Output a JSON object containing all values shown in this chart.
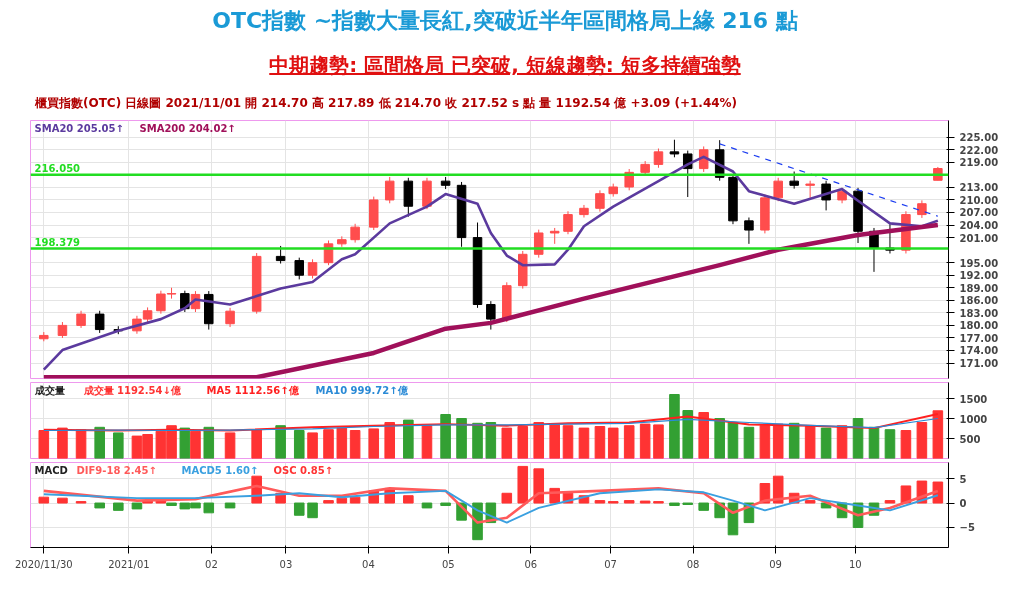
{
  "chart_data": [
    {
      "type": "candlestick",
      "title": "OTC指數 ~指數大量長紅,突破近半年區間格局上緣 216 點",
      "subtitle": "中期趨勢: 區間格局 已突破, 短線趨勢: 短多持續強勢",
      "annotations": [
        "櫃買指數(OTC)  日線圖  2021/11/01  開 214.70  高 217.89  低 214.70  收 217.52 s 點  量 1192.54 億  +3.09 (+1.44%)"
      ],
      "x": [
        "2020-11-30",
        "2020-12-07",
        "2020-12-14",
        "2020-12-21",
        "2020-12-28",
        "2021-01-04",
        "2021-01-08",
        "2021-01-13",
        "2021-01-17",
        "2021-01-22",
        "2021-01-26",
        "2021-01-31",
        "2021-02-08",
        "2021-02-18",
        "2021-02-27",
        "2021-03-06",
        "2021-03-11",
        "2021-03-17",
        "2021-03-22",
        "2021-03-27",
        "2021-04-03",
        "2021-04-09",
        "2021-04-16",
        "2021-04-23",
        "2021-04-30",
        "2021-05-06",
        "2021-05-12",
        "2021-05-17",
        "2021-05-23",
        "2021-05-29",
        "2021-06-04",
        "2021-06-10",
        "2021-06-15",
        "2021-06-21",
        "2021-06-27",
        "2021-07-02",
        "2021-07-08",
        "2021-07-14",
        "2021-07-19",
        "2021-07-25",
        "2021-07-30",
        "2021-08-05",
        "2021-08-11",
        "2021-08-16",
        "2021-08-22",
        "2021-08-28",
        "2021-09-02",
        "2021-09-08",
        "2021-09-14",
        "2021-09-20",
        "2021-09-26",
        "2021-10-02",
        "2021-10-08",
        "2021-10-14",
        "2021-10-20",
        "2021-10-26",
        "2021-11-01"
      ],
      "ohlc": [
        [
          176.8,
          178.4,
          176.2,
          177.6
        ],
        [
          177.6,
          180.8,
          177.0,
          180.0
        ],
        [
          180.0,
          183.5,
          179.4,
          182.7
        ],
        [
          182.7,
          183.5,
          178.2,
          179.0
        ],
        [
          179.0,
          179.8,
          177.9,
          178.7
        ],
        [
          178.7,
          182.3,
          178.0,
          181.5
        ],
        [
          181.5,
          184.3,
          180.8,
          183.5
        ],
        [
          183.5,
          188.3,
          182.8,
          187.5
        ],
        [
          187.5,
          189.0,
          186.4,
          187.6
        ],
        [
          187.6,
          188.3,
          183.2,
          184.0
        ],
        [
          184.0,
          188.2,
          183.2,
          187.4
        ],
        [
          187.4,
          188.2,
          179.0,
          180.4
        ],
        [
          180.4,
          184.2,
          179.6,
          183.4
        ],
        [
          183.4,
          197.3,
          182.8,
          196.5
        ],
        [
          196.5,
          199.0,
          194.8,
          195.5
        ],
        [
          195.5,
          196.2,
          191.0,
          192.0
        ],
        [
          192.0,
          195.8,
          191.2,
          195.0
        ],
        [
          195.0,
          200.3,
          194.4,
          199.5
        ],
        [
          199.5,
          201.3,
          198.8,
          200.5
        ],
        [
          200.5,
          204.3,
          199.8,
          203.5
        ],
        [
          203.5,
          210.8,
          202.8,
          210.0
        ],
        [
          210.0,
          215.5,
          209.2,
          214.5
        ],
        [
          214.5,
          215.3,
          206.0,
          208.5
        ],
        [
          208.5,
          215.3,
          207.8,
          214.5
        ],
        [
          214.5,
          215.5,
          212.6,
          213.5
        ],
        [
          213.5,
          214.3,
          198.8,
          201.0
        ],
        [
          201.0,
          204.6,
          184.2,
          185.0
        ],
        [
          185.0,
          185.8,
          179.0,
          181.5
        ],
        [
          181.5,
          190.3,
          180.8,
          189.5
        ],
        [
          189.5,
          197.8,
          188.8,
          197.0
        ],
        [
          197.0,
          202.9,
          196.2,
          202.1
        ],
        [
          202.1,
          203.3,
          199.5,
          202.5
        ],
        [
          202.5,
          207.3,
          201.8,
          206.5
        ],
        [
          206.5,
          208.8,
          205.8,
          208.0
        ],
        [
          208.0,
          212.3,
          207.2,
          211.5
        ],
        [
          211.5,
          213.9,
          210.8,
          213.1
        ],
        [
          213.1,
          217.4,
          212.3,
          216.6
        ],
        [
          216.6,
          219.3,
          215.8,
          218.5
        ],
        [
          218.5,
          222.3,
          217.7,
          221.5
        ],
        [
          221.5,
          224.4,
          220.2,
          221.0
        ],
        [
          221.0,
          221.8,
          210.7,
          217.5
        ],
        [
          217.5,
          222.8,
          216.7,
          222.0
        ],
        [
          222.0,
          224.3,
          214.6,
          215.4
        ],
        [
          215.4,
          216.2,
          204.2,
          205.0
        ],
        [
          205.0,
          205.8,
          199.5,
          202.8
        ],
        [
          202.8,
          211.3,
          202.0,
          210.5
        ],
        [
          210.5,
          215.3,
          209.7,
          214.5
        ],
        [
          214.5,
          216.8,
          212.7,
          213.5
        ],
        [
          213.5,
          214.6,
          210.5,
          213.8
        ],
        [
          213.8,
          214.6,
          207.5,
          210.0
        ],
        [
          210.0,
          212.9,
          209.2,
          212.1
        ],
        [
          212.1,
          212.9,
          199.7,
          202.5
        ],
        [
          202.5,
          203.3,
          192.8,
          198.5
        ],
        [
          198.5,
          204.2,
          197.2,
          198.0
        ],
        [
          198.0,
          207.3,
          197.2,
          206.5
        ],
        [
          206.5,
          209.9,
          205.7,
          209.1
        ],
        [
          214.7,
          217.89,
          214.7,
          217.52
        ]
      ],
      "colors": [
        "#ff4d4d",
        "#ff4d4d",
        "#ff4d4d",
        "#000000",
        "#000000",
        "#ff4d4d",
        "#ff4d4d",
        "#ff4d4d",
        "#ff4d4d",
        "#000000",
        "#ff4d4d",
        "#000000",
        "#ff4d4d",
        "#ff4d4d",
        "#000000",
        "#000000",
        "#ff4d4d",
        "#ff4d4d",
        "#ff4d4d",
        "#ff4d4d",
        "#ff4d4d",
        "#ff4d4d",
        "#000000",
        "#ff4d4d",
        "#000000",
        "#000000",
        "#000000",
        "#000000",
        "#ff4d4d",
        "#ff4d4d",
        "#ff4d4d",
        "#ff4d4d",
        "#ff4d4d",
        "#ff4d4d",
        "#ff4d4d",
        "#ff4d4d",
        "#ff4d4d",
        "#ff4d4d",
        "#ff4d4d",
        "#000000",
        "#000000",
        "#ff4d4d",
        "#000000",
        "#000000",
        "#000000",
        "#ff4d4d",
        "#ff4d4d",
        "#000000",
        "#ff4d4d",
        "#000000",
        "#ff4d4d",
        "#000000",
        "#000000",
        "#000000",
        "#ff4d4d",
        "#ff4d4d",
        "#ff4d4d"
      ],
      "series": [
        {
          "name": "SMA20 205.05↑",
          "type": "line",
          "color": "#5b3a9e",
          "x": [
            "2020-11-30",
            "2020-12-07",
            "2020-12-28",
            "2021-01-13",
            "2021-01-22",
            "2021-01-26",
            "2021-02-08",
            "2021-02-27",
            "2021-03-11",
            "2021-03-22",
            "2021-03-27",
            "2021-04-09",
            "2021-04-23",
            "2021-04-30",
            "2021-05-12",
            "2021-05-17",
            "2021-05-23",
            "2021-05-29",
            "2021-06-10",
            "2021-06-15",
            "2021-06-21",
            "2021-07-02",
            "2021-07-19",
            "2021-07-30",
            "2021-08-05",
            "2021-08-16",
            "2021-08-22",
            "2021-09-08",
            "2021-09-26",
            "2021-10-02",
            "2021-10-14",
            "2021-10-26",
            "2021-11-01"
          ],
          "values": [
            169.4,
            174.1,
            178.7,
            181.5,
            184.1,
            186.2,
            185.0,
            188.8,
            190.4,
            195.8,
            197.0,
            204.4,
            208.4,
            211.4,
            209.1,
            202.1,
            196.7,
            194.4,
            194.6,
            198.1,
            203.7,
            208.4,
            214.5,
            218.5,
            220.3,
            216.8,
            212.1,
            209.1,
            212.6,
            209.8,
            204.4,
            203.7,
            205.05
          ]
        },
        {
          "name": "SMA200 204.02↑",
          "type": "line",
          "color": "#a0105a",
          "x": [
            "2020-11-30",
            "2021-02-18",
            "2021-04-03",
            "2021-04-30",
            "2021-05-17",
            "2021-06-21",
            "2021-08-11",
            "2021-09-02",
            "2021-10-02",
            "2021-11-01"
          ],
          "values": [
            167.6,
            167.6,
            173.4,
            179.2,
            180.6,
            186.4,
            194.4,
            198.1,
            201.6,
            204.02
          ]
        },
        {
          "type": "line",
          "color": "#1a3cf0",
          "line_style": "dashed",
          "x": [
            "2021-08-11",
            "2021-11-01"
          ],
          "values": [
            223.4,
            206.1
          ]
        }
      ],
      "ref_lines": [
        {
          "axis": "y",
          "value": 216.05,
          "label": "216.050",
          "color": "#22dd22"
        },
        {
          "axis": "y",
          "value": 198.379,
          "label": "198.379",
          "color": "#22dd22"
        }
      ],
      "xlim": [
        "2020-11-25",
        "2021-11-05"
      ],
      "ylim": [
        167.3,
        229
      ],
      "xticks": [
        {
          "value": "2020-11-30",
          "label": null
        },
        {
          "value": "2021-01-01",
          "label": null
        },
        {
          "value": "2021-02-01",
          "label": null
        },
        {
          "value": "2021-03-01",
          "label": null
        },
        {
          "value": "2021-04-01",
          "label": null
        },
        {
          "value": "2021-05-01",
          "label": null
        },
        {
          "value": "2021-06-01",
          "label": null
        },
        {
          "value": "2021-07-01",
          "label": null
        },
        {
          "value": "2021-08-01",
          "label": null
        },
        {
          "value": "2021-09-01",
          "label": null
        },
        {
          "value": "2021-10-01",
          "label": null
        }
      ],
      "yticks": [
        {
          "value": 171,
          "label": "171.00"
        },
        {
          "value": 174,
          "label": "174.00"
        },
        {
          "value": 177,
          "label": "177.00"
        },
        {
          "value": 180,
          "label": "180.00"
        },
        {
          "value": 183,
          "label": "183.00"
        },
        {
          "value": 186,
          "label": "186.00"
        },
        {
          "value": 189,
          "label": "189.00"
        },
        {
          "value": 192,
          "label": "192.00"
        },
        {
          "value": 195,
          "label": "195.00"
        },
        {
          "value": 201,
          "label": "201.00"
        },
        {
          "value": 204,
          "label": "204.00"
        },
        {
          "value": 207,
          "label": "207.00"
        },
        {
          "value": 210,
          "label": "210.00"
        },
        {
          "value": 213,
          "label": "213.00"
        },
        {
          "value": 219,
          "label": "219.00"
        },
        {
          "value": 222,
          "label": "222.00"
        },
        {
          "value": 225,
          "label": "225.00"
        }
      ],
      "tick_labels": "y",
      "grid": true,
      "legend": "top left"
    },
    {
      "type": "bar",
      "title": "成交量",
      "x": [
        "2020-11-30",
        "2020-12-07",
        "2020-12-14",
        "2020-12-21",
        "2020-12-28",
        "2021-01-04",
        "2021-01-08",
        "2021-01-13",
        "2021-01-17",
        "2021-01-22",
        "2021-01-26",
        "2021-01-31",
        "2021-02-08",
        "2021-02-18",
        "2021-02-27",
        "2021-03-06",
        "2021-03-11",
        "2021-03-17",
        "2021-03-22",
        "2021-03-27",
        "2021-04-03",
        "2021-04-09",
        "2021-04-16",
        "2021-04-23",
        "2021-04-30",
        "2021-05-06",
        "2021-05-12",
        "2021-05-17",
        "2021-05-23",
        "2021-05-29",
        "2021-06-04",
        "2021-06-10",
        "2021-06-15",
        "2021-06-21",
        "2021-06-27",
        "2021-07-02",
        "2021-07-08",
        "2021-07-14",
        "2021-07-19",
        "2021-07-25",
        "2021-07-30",
        "2021-08-05",
        "2021-08-11",
        "2021-08-16",
        "2021-08-22",
        "2021-08-28",
        "2021-09-02",
        "2021-09-08",
        "2021-09-14",
        "2021-09-20",
        "2021-09-26",
        "2021-10-02",
        "2021-10-08",
        "2021-10-14",
        "2021-10-20",
        "2021-10-26",
        "2021-11-01"
      ],
      "series": [
        {
          "name": "成交量 1192.54↓億",
          "type": "bar",
          "values": [
            700,
            760,
            720,
            780,
            640,
            560,
            600,
            680,
            820,
            760,
            680,
            780,
            640,
            720,
            820,
            700,
            640,
            720,
            760,
            700,
            740,
            900,
            960,
            820,
            1100,
            1000,
            880,
            900,
            760,
            800,
            900,
            860,
            820,
            760,
            800,
            760,
            820,
            860,
            840,
            1600,
            1200,
            1150,
            1000,
            900,
            780,
            820,
            860,
            880,
            800,
            760,
            820,
            1000,
            780,
            720,
            700,
            900,
            1192.54
          ],
          "colors": [
            "#ff3333",
            "#ff3333",
            "#ff3333",
            "#33a033",
            "#33a033",
            "#ff3333",
            "#ff3333",
            "#ff3333",
            "#ff3333",
            "#33a033",
            "#ff3333",
            "#33a033",
            "#ff3333",
            "#ff3333",
            "#33a033",
            "#33a033",
            "#ff3333",
            "#ff3333",
            "#ff3333",
            "#ff3333",
            "#ff3333",
            "#ff3333",
            "#33a033",
            "#ff3333",
            "#33a033",
            "#33a033",
            "#33a033",
            "#33a033",
            "#ff3333",
            "#ff3333",
            "#ff3333",
            "#ff3333",
            "#ff3333",
            "#ff3333",
            "#ff3333",
            "#ff3333",
            "#ff3333",
            "#ff3333",
            "#ff3333",
            "#33a033",
            "#33a033",
            "#ff3333",
            "#33a033",
            "#33a033",
            "#33a033",
            "#ff3333",
            "#ff3333",
            "#33a033",
            "#ff3333",
            "#33a033",
            "#ff3333",
            "#33a033",
            "#33a033",
            "#33a033",
            "#ff3333",
            "#ff3333",
            "#ff3333"
          ]
        },
        {
          "name": "MA5 1112.56↑億",
          "type": "line",
          "color": "#ff2020",
          "x": [
            "2020-11-30",
            "2020-12-28",
            "2021-01-17",
            "2021-02-08",
            "2021-03-11",
            "2021-04-03",
            "2021-04-30",
            "2021-05-23",
            "2021-06-15",
            "2021-07-08",
            "2021-07-30",
            "2021-08-22",
            "2021-09-14",
            "2021-10-08",
            "2021-11-01"
          ],
          "values": [
            720,
            700,
            720,
            700,
            780,
            820,
            860,
            820,
            880,
            900,
            1050,
            850,
            820,
            760,
            1112.56
          ]
        },
        {
          "name": "MA10 999.72↑億",
          "type": "line",
          "color": "#2a8ad6",
          "x": [
            "2020-11-30",
            "2020-12-28",
            "2021-01-17",
            "2021-02-08",
            "2021-03-11",
            "2021-04-03",
            "2021-04-30",
            "2021-05-23",
            "2021-06-15",
            "2021-07-08",
            "2021-07-30",
            "2021-08-22",
            "2021-09-14",
            "2021-10-08",
            "2021-11-01"
          ],
          "values": [
            700,
            710,
            700,
            710,
            740,
            800,
            840,
            840,
            860,
            880,
            980,
            900,
            830,
            770,
            999.72
          ]
        }
      ],
      "xlim": [
        "2020-11-25",
        "2021-11-05"
      ],
      "ylim": [
        0,
        1900
      ],
      "xticks": [
        {
          "value": "2020-11-30",
          "label": null
        },
        {
          "value": "2021-01-01",
          "label": null
        },
        {
          "value": "2021-02-01",
          "label": null
        },
        {
          "value": "2021-03-01",
          "label": null
        },
        {
          "value": "2021-04-01",
          "label": null
        },
        {
          "value": "2021-05-01",
          "label": null
        },
        {
          "value": "2021-06-01",
          "label": null
        },
        {
          "value": "2021-07-01",
          "label": null
        },
        {
          "value": "2021-08-01",
          "label": null
        },
        {
          "value": "2021-09-01",
          "label": null
        },
        {
          "value": "2021-10-01",
          "label": null
        }
      ],
      "yticks": [
        500,
        1000,
        1500
      ],
      "tick_labels": "y",
      "grid": true,
      "legend": "top left"
    },
    {
      "type": "bar",
      "title": "MACD",
      "x": [
        "2020-11-30",
        "2020-12-07",
        "2020-12-14",
        "2020-12-21",
        "2020-12-28",
        "2021-01-04",
        "2021-01-08",
        "2021-01-13",
        "2021-01-17",
        "2021-01-22",
        "2021-01-26",
        "2021-01-31",
        "2021-02-08",
        "2021-02-18",
        "2021-02-27",
        "2021-03-06",
        "2021-03-11",
        "2021-03-17",
        "2021-03-22",
        "2021-03-27",
        "2021-04-03",
        "2021-04-09",
        "2021-04-16",
        "2021-04-23",
        "2021-04-30",
        "2021-05-06",
        "2021-05-12",
        "2021-05-17",
        "2021-05-23",
        "2021-05-29",
        "2021-06-04",
        "2021-06-10",
        "2021-06-15",
        "2021-06-21",
        "2021-06-27",
        "2021-07-02",
        "2021-07-08",
        "2021-07-14",
        "2021-07-19",
        "2021-07-25",
        "2021-07-30",
        "2021-08-05",
        "2021-08-11",
        "2021-08-16",
        "2021-08-22",
        "2021-08-28",
        "2021-09-02",
        "2021-09-08",
        "2021-09-14",
        "2021-09-20",
        "2021-09-26",
        "2021-10-02",
        "2021-10-08",
        "2021-10-14",
        "2021-10-20",
        "2021-10-26",
        "2021-11-01"
      ],
      "series": [
        {
          "name": "DIF9-18 2.45↑",
          "type": "line",
          "color": "#ff5a5a",
          "x": [
            "2020-11-30",
            "2021-01-04",
            "2021-01-26",
            "2021-02-18",
            "2021-03-06",
            "2021-03-22",
            "2021-04-09",
            "2021-04-30",
            "2021-05-12",
            "2021-05-23",
            "2021-06-04",
            "2021-06-27",
            "2021-07-19",
            "2021-08-05",
            "2021-08-16",
            "2021-08-28",
            "2021-09-14",
            "2021-10-02",
            "2021-10-14",
            "2021-11-01"
          ],
          "values": [
            2.5,
            0.5,
            0.8,
            3.5,
            1.5,
            1.5,
            3.0,
            2.5,
            -4.0,
            -3.0,
            2.0,
            2.5,
            3.0,
            2.0,
            -2.0,
            0.5,
            1.5,
            -2.5,
            -1.0,
            2.45
          ]
        },
        {
          "name": "MACD5 1.60↑",
          "type": "line",
          "color": "#3aa0e0",
          "x": [
            "2020-11-30",
            "2021-01-04",
            "2021-01-26",
            "2021-02-18",
            "2021-03-06",
            "2021-03-22",
            "2021-04-09",
            "2021-04-30",
            "2021-05-12",
            "2021-05-23",
            "2021-06-04",
            "2021-06-27",
            "2021-07-19",
            "2021-08-05",
            "2021-08-16",
            "2021-08-28",
            "2021-09-14",
            "2021-10-02",
            "2021-10-14",
            "2021-11-01"
          ],
          "values": [
            1.8,
            1.0,
            1.0,
            1.5,
            2.0,
            1.2,
            2.0,
            2.5,
            -1.5,
            -4.0,
            -1.0,
            2.0,
            2.8,
            2.2,
            0.5,
            -1.5,
            1.0,
            -0.5,
            -1.5,
            1.6
          ]
        },
        {
          "name": "OSC 0.85↑",
          "type": "bar",
          "color": "#1a1aff",
          "values": [
            1.2,
            1.0,
            0.3,
            -1.0,
            -1.5,
            -1.2,
            0.5,
            0.8,
            -0.5,
            -1.2,
            -1.0,
            -2.0,
            -1.0,
            5.5,
            2.0,
            -2.5,
            -3.0,
            0.5,
            1.0,
            1.2,
            2.5,
            3.0,
            1.5,
            -1.0,
            -0.5,
            -3.5,
            -7.5,
            -4.0,
            2.0,
            7.5,
            7.0,
            3.0,
            2.0,
            1.5,
            0.5,
            0.3,
            0.5,
            0.4,
            0.3,
            -0.5,
            -0.3,
            -1.5,
            -3.0,
            -6.5,
            -4.0,
            4.0,
            5.5,
            2.0,
            0.5,
            -1.0,
            -3.0,
            -5.0,
            -2.5,
            0.5,
            3.5,
            4.5,
            4.3
          ],
          "colors": [
            "#ff3333",
            "#ff3333",
            "#ff3333",
            "#33a033",
            "#33a033",
            "#33a033",
            "#ff3333",
            "#ff3333",
            "#33a033",
            "#33a033",
            "#33a033",
            "#33a033",
            "#33a033",
            "#ff3333",
            "#ff3333",
            "#33a033",
            "#33a033",
            "#ff3333",
            "#ff3333",
            "#ff3333",
            "#ff3333",
            "#ff3333",
            "#ff3333",
            "#33a033",
            "#33a033",
            "#33a033",
            "#33a033",
            "#33a033",
            "#ff3333",
            "#ff3333",
            "#ff3333",
            "#ff3333",
            "#ff3333",
            "#ff3333",
            "#ff3333",
            "#ff3333",
            "#ff3333",
            "#ff3333",
            "#ff3333",
            "#33a033",
            "#33a033",
            "#33a033",
            "#33a033",
            "#33a033",
            "#33a033",
            "#ff3333",
            "#ff3333",
            "#ff3333",
            "#ff3333",
            "#33a033",
            "#33a033",
            "#33a033",
            "#33a033",
            "#ff3333",
            "#ff3333",
            "#ff3333",
            "#ff3333"
          ]
        }
      ],
      "xlim": [
        "2020-11-25",
        "2021-11-05"
      ],
      "ylim": [
        -9.1,
        8.3
      ],
      "xticks": [
        {
          "value": "2020-11-30",
          "label": "2020/11/30"
        },
        {
          "value": "2021-01-01",
          "label": "2021/01"
        },
        {
          "value": "2021-02-01",
          "label": "02"
        },
        {
          "value": "2021-03-01",
          "label": "03"
        },
        {
          "value": "2021-04-01",
          "label": "04"
        },
        {
          "value": "2021-05-01",
          "label": "05"
        },
        {
          "value": "2021-06-01",
          "label": "06"
        },
        {
          "value": "2021-07-01",
          "label": "07"
        },
        {
          "value": "2021-08-01",
          "label": "08"
        },
        {
          "value": "2021-09-01",
          "label": "09"
        },
        {
          "value": "2021-10-01",
          "label": "10"
        }
      ],
      "yticks": [
        -5,
        0,
        5
      ],
      "grid": true,
      "legend": "top left"
    }
  ]
}
